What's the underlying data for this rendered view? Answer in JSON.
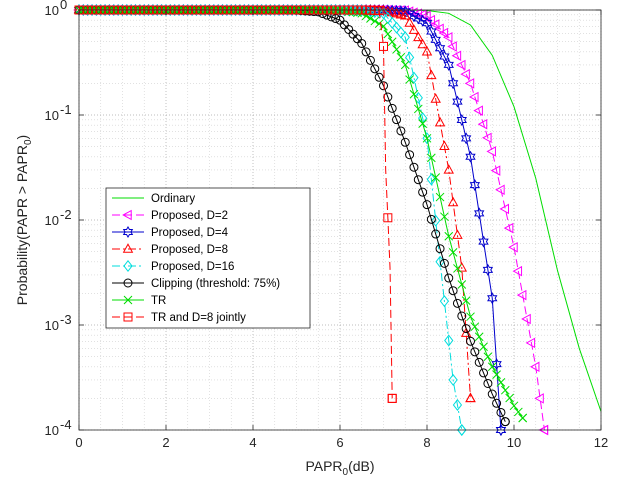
{
  "chart_data": {
    "type": "line",
    "title": "",
    "xlabel": {
      "main": "PAPR",
      "sub": "0",
      "tail": "(dB)"
    },
    "ylabel": {
      "main": "Probability(PAPR > PAPR",
      "sub": "0",
      "tail": ")"
    },
    "xlim": [
      0,
      12
    ],
    "ylim": [
      0.0001,
      1
    ],
    "yscale": "log",
    "grid": "major and minor, dotted",
    "x_ticks": [
      "0",
      "2",
      "4",
      "6",
      "8",
      "10",
      "12"
    ],
    "y_ticks": [
      {
        "base": "10",
        "exp": "0",
        "value": 1
      },
      {
        "base": "10",
        "exp": "-1",
        "value": 0.1
      },
      {
        "base": "10",
        "exp": "-2",
        "value": 0.01
      },
      {
        "base": "10",
        "exp": "-3",
        "value": 0.001
      },
      {
        "base": "10",
        "exp": "-4",
        "value": 0.0001
      }
    ],
    "legend_position": "lower-left",
    "series": [
      {
        "name": "Ordinary",
        "color": "#00dd00",
        "dash": "",
        "marker": "none",
        "x": [
          0,
          6.0,
          7.0,
          7.5,
          8.0,
          8.5,
          9.0,
          9.5,
          10.0,
          10.5,
          11.0,
          11.5,
          12.0
        ],
        "y": [
          1,
          1,
          1,
          0.999,
          0.99,
          0.93,
          0.72,
          0.37,
          0.12,
          0.025,
          0.0033,
          0.0006,
          0.00015
        ]
      },
      {
        "name": "Proposed, D=2",
        "color": "#ff00ff",
        "dash": "8,4",
        "marker": "triangle-left",
        "x": [
          0,
          6.0,
          7.0,
          7.5,
          8.0,
          8.5,
          9.0,
          9.5,
          10.0,
          10.5,
          10.7
        ],
        "y": [
          1,
          1,
          0.999,
          0.99,
          0.88,
          0.55,
          0.2,
          0.045,
          0.0055,
          0.0004,
          0.0001
        ]
      },
      {
        "name": "Proposed, D=4",
        "color": "#0000cc",
        "dash": "",
        "marker": "hexagram",
        "x": [
          0,
          6.0,
          7.0,
          7.5,
          8.0,
          8.5,
          9.0,
          9.5,
          9.7
        ],
        "y": [
          1,
          1,
          0.998,
          0.97,
          0.75,
          0.3,
          0.04,
          0.0018,
          0.0001
        ]
      },
      {
        "name": "Proposed, D=8",
        "color": "#ff0000",
        "dash": "8,3,2,3",
        "marker": "triangle-up",
        "x": [
          0,
          6.0,
          7.0,
          7.5,
          8.0,
          8.5,
          8.8,
          9.0
        ],
        "y": [
          1,
          1,
          0.99,
          0.88,
          0.4,
          0.03,
          0.0035,
          0.0002
        ]
      },
      {
        "name": "Proposed, D=16",
        "color": "#00dddd",
        "dash": "8,3,2,3",
        "marker": "diamond",
        "x": [
          0,
          6.0,
          6.5,
          7.0,
          7.5,
          8.0,
          8.3,
          8.6,
          8.8
        ],
        "y": [
          1,
          1,
          0.995,
          0.93,
          0.55,
          0.06,
          0.004,
          0.0003,
          0.0001
        ]
      },
      {
        "name": "Clipping (threshold: 75%)",
        "color": "#000000",
        "dash": "",
        "marker": "circle",
        "x": [
          0,
          4.5,
          5.0,
          5.5,
          6.0,
          6.5,
          7.0,
          7.5,
          8.0,
          8.5,
          9.0,
          9.5,
          9.8
        ],
        "y": [
          1,
          1,
          0.995,
          0.96,
          0.8,
          0.48,
          0.19,
          0.055,
          0.014,
          0.0028,
          0.0007,
          0.00022,
          0.00012
        ]
      },
      {
        "name": "TR",
        "color": "#00dd00",
        "dash": "",
        "marker": "x",
        "x": [
          0,
          5.5,
          6.0,
          6.5,
          7.0,
          7.5,
          8.0,
          8.5,
          9.0,
          9.5,
          10.0,
          10.2
        ],
        "y": [
          1,
          1,
          0.99,
          0.93,
          0.7,
          0.3,
          0.06,
          0.007,
          0.0012,
          0.0004,
          0.00017,
          0.00013
        ]
      },
      {
        "name": "TR and D=8 jointly",
        "color": "#ff0000",
        "dash": "8,4",
        "marker": "square",
        "x": [
          0,
          6.5,
          6.9,
          7.0,
          7.05,
          7.1,
          7.15,
          7.2
        ],
        "y": [
          1,
          1,
          0.99,
          0.45,
          0.03,
          0.0105,
          0.0035,
          0.0002
        ]
      }
    ]
  }
}
